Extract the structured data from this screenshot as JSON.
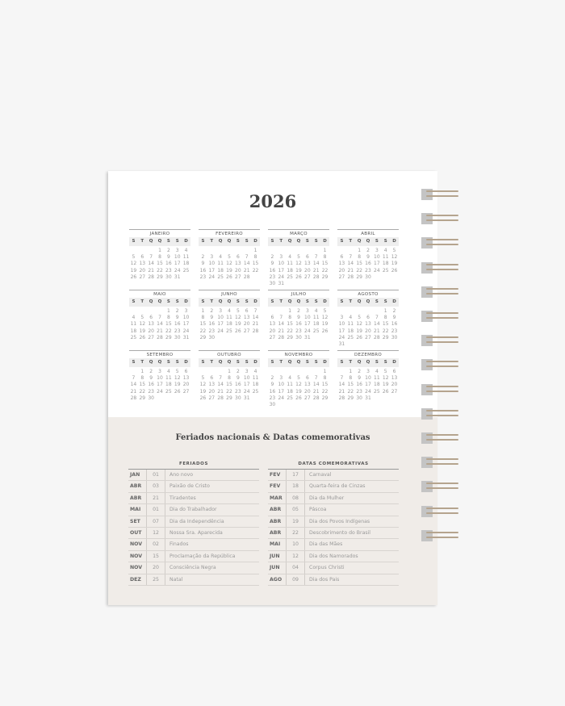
{
  "year": "2026",
  "weekday_labels": [
    "S",
    "T",
    "Q",
    "Q",
    "S",
    "S",
    "D"
  ],
  "months": [
    {
      "name": "JANEIRO",
      "first_weekday": 3,
      "days": 31
    },
    {
      "name": "FEVEREIRO",
      "first_weekday": 6,
      "days": 28
    },
    {
      "name": "MARÇO",
      "first_weekday": 6,
      "days": 31
    },
    {
      "name": "ABRIL",
      "first_weekday": 2,
      "days": 30
    },
    {
      "name": "MAIO",
      "first_weekday": 4,
      "days": 31
    },
    {
      "name": "JUNHO",
      "first_weekday": 0,
      "days": 30
    },
    {
      "name": "JULHO",
      "first_weekday": 2,
      "days": 31
    },
    {
      "name": "AGOSTO",
      "first_weekday": 5,
      "days": 31
    },
    {
      "name": "SETEMBRO",
      "first_weekday": 1,
      "days": 30
    },
    {
      "name": "OUTUBRO",
      "first_weekday": 3,
      "days": 31
    },
    {
      "name": "NOVEMBRO",
      "first_weekday": 6,
      "days": 30
    },
    {
      "name": "DEZEMBRO",
      "first_weekday": 1,
      "days": 31
    }
  ],
  "section_title": "Feriados nacionais & Datas comemorativas",
  "feriados": {
    "header": "FERIADOS",
    "rows": [
      [
        "JAN",
        "01",
        "Ano novo"
      ],
      [
        "ABR",
        "03",
        "Paixão de Cristo"
      ],
      [
        "ABR",
        "21",
        "Tiradentes"
      ],
      [
        "MAI",
        "01",
        "Dia do Trabalhador"
      ],
      [
        "SET",
        "07",
        "Dia da Independência"
      ],
      [
        "OUT",
        "12",
        "Nossa Sra. Aparecida"
      ],
      [
        "NOV",
        "02",
        "Finados"
      ],
      [
        "NOV",
        "15",
        "Proclamação da República"
      ],
      [
        "NOV",
        "20",
        "Consciência Negra"
      ],
      [
        "DEZ",
        "25",
        "Natal"
      ]
    ]
  },
  "datas": {
    "header": "DATAS COMEMORATIVAS",
    "rows": [
      [
        "FEV",
        "17",
        "Carnaval"
      ],
      [
        "FEV",
        "18",
        "Quarta-feira de Cinzas"
      ],
      [
        "MAR",
        "08",
        "Dia da Mulher"
      ],
      [
        "ABR",
        "05",
        "Páscoa"
      ],
      [
        "ABR",
        "19",
        "Dia dos Povos Indígenas"
      ],
      [
        "ABR",
        "22",
        "Descobrimento do Brasil"
      ],
      [
        "MAI",
        "10",
        "Dia das Mães"
      ],
      [
        "JUN",
        "12",
        "Dia dos Namorados"
      ],
      [
        "JUN",
        "04",
        "Corpus Christi"
      ],
      [
        "AGO",
        "09",
        "Dia dos Pais"
      ]
    ]
  },
  "colors": {
    "page": "#ffffff",
    "lower_panel": "#f0ece8",
    "spiral": "#b5a48e"
  }
}
